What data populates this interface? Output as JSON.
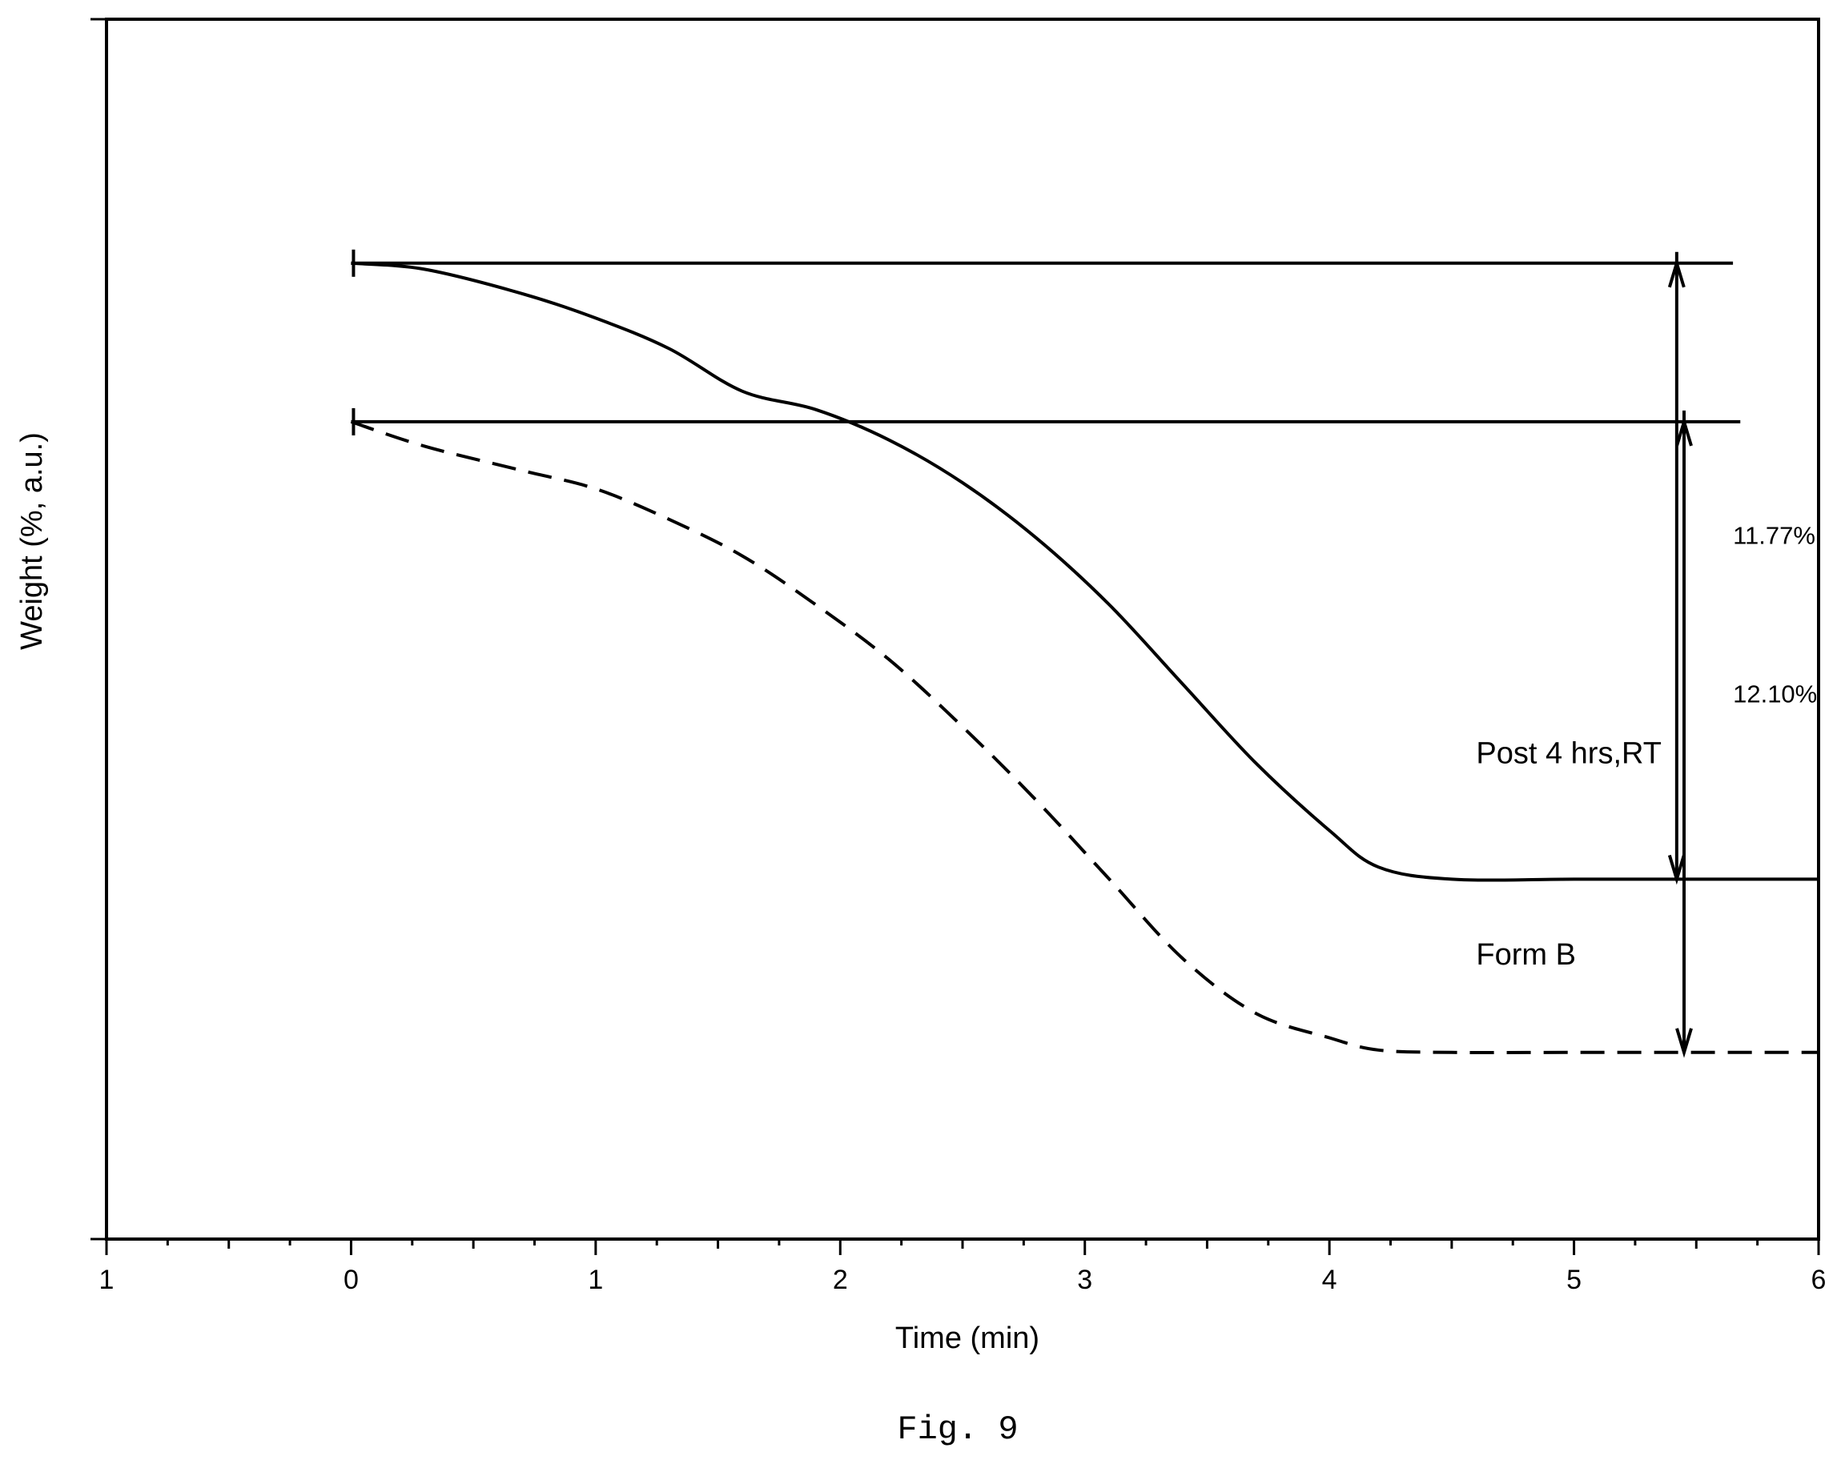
{
  "chart_data": {
    "type": "line",
    "title": "",
    "xlabel": "Time (min)",
    "ylabel": "Weight (%, a.u.)",
    "xlim": [
      -1,
      6
    ],
    "ylim": [
      0,
      100
    ],
    "x_ticks": [
      "1",
      "0",
      "1",
      "2",
      "3",
      "4",
      "5",
      "6"
    ],
    "x_tick_values": [
      -1,
      0,
      1,
      2,
      3,
      4,
      5,
      6
    ],
    "y_ticks_labeled": false,
    "series": [
      {
        "name": "Post 4 hrs,RT",
        "style": "solid",
        "points": [
          [
            0,
            80
          ],
          [
            0.3,
            79.5
          ],
          [
            0.7,
            77.5
          ],
          [
            1.0,
            75.5
          ],
          [
            1.3,
            73
          ],
          [
            1.6,
            69.5
          ],
          [
            1.9,
            68
          ],
          [
            2.2,
            65.5
          ],
          [
            2.5,
            62
          ],
          [
            2.8,
            57.5
          ],
          [
            3.1,
            52
          ],
          [
            3.4,
            45.5
          ],
          [
            3.7,
            39
          ],
          [
            4.0,
            33.5
          ],
          [
            4.2,
            30.5
          ],
          [
            4.5,
            29.5
          ],
          [
            5.0,
            29.5
          ],
          [
            5.5,
            29.5
          ],
          [
            6.0,
            29.5
          ]
        ]
      },
      {
        "name": "Form B",
        "style": "dashed",
        "points": [
          [
            0,
            67
          ],
          [
            0.3,
            65
          ],
          [
            0.7,
            63
          ],
          [
            1.0,
            61.5
          ],
          [
            1.3,
            59
          ],
          [
            1.6,
            56
          ],
          [
            1.9,
            52
          ],
          [
            2.2,
            47.5
          ],
          [
            2.5,
            42
          ],
          [
            2.8,
            36
          ],
          [
            3.1,
            29.5
          ],
          [
            3.4,
            23
          ],
          [
            3.7,
            18.5
          ],
          [
            4.0,
            16.5
          ],
          [
            4.2,
            15.5
          ],
          [
            4.5,
            15.3
          ],
          [
            5.0,
            15.3
          ],
          [
            5.5,
            15.3
          ],
          [
            6.0,
            15.3
          ]
        ]
      }
    ],
    "annotations": {
      "ref_lines": [
        {
          "y": 80,
          "x_from": 0,
          "x_to": 5.65
        },
        {
          "y": 67,
          "x_from": 0,
          "x_to": 5.68
        }
      ],
      "arrows": [
        {
          "x": 5.42,
          "y_from": 80,
          "y_to": 29.5
        },
        {
          "x": 5.45,
          "y_from": 67,
          "y_to": 15.3
        }
      ],
      "labels": [
        {
          "text": "11.77%",
          "x": 5.65,
          "y": 57
        },
        {
          "text": "12.10%",
          "x": 5.65,
          "y": 44
        },
        {
          "text": "Post 4 hrs,RT",
          "x": 4.6,
          "y": 39
        },
        {
          "text": "Form B",
          "x": 4.6,
          "y": 22.5
        }
      ]
    },
    "grid": false,
    "legend": "none",
    "colors": {
      "line": "#000000",
      "background": "#ffffff"
    }
  },
  "caption": "Fig. 9"
}
